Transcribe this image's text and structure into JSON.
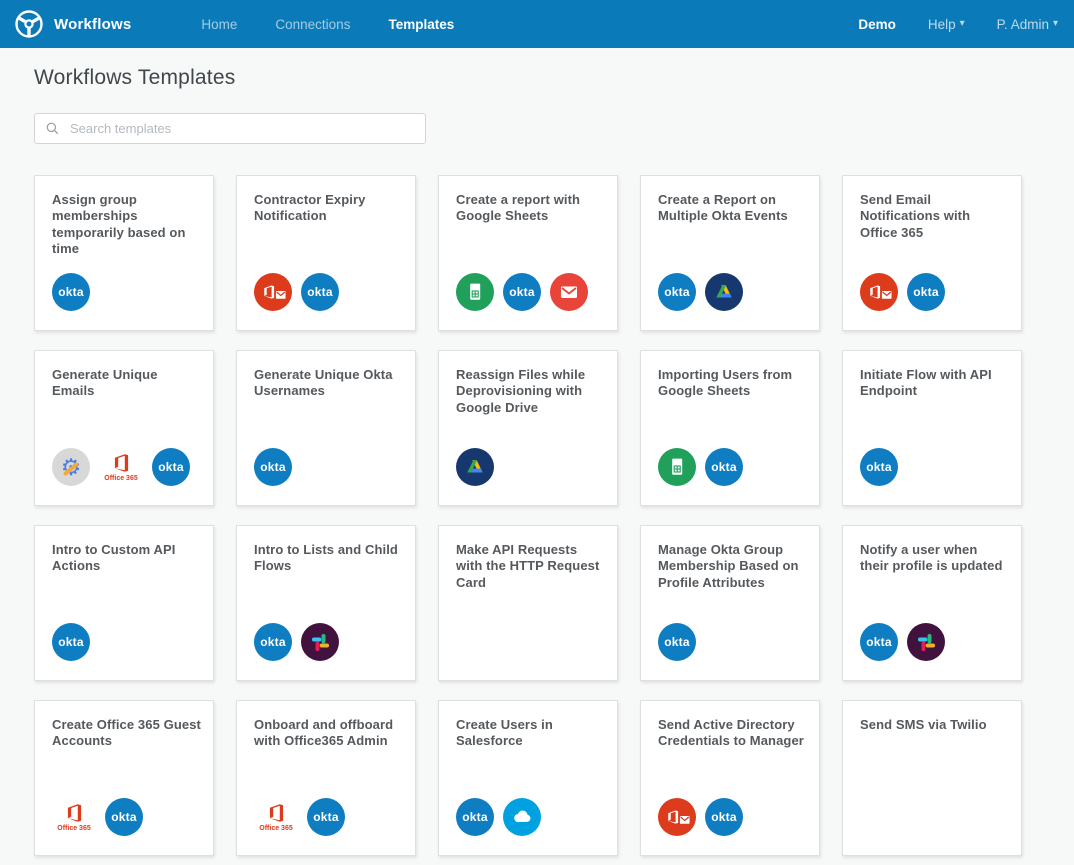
{
  "header": {
    "brand": "Workflows",
    "nav": [
      {
        "label": "Home",
        "active": false
      },
      {
        "label": "Connections",
        "active": false
      },
      {
        "label": "Templates",
        "active": true
      }
    ],
    "right": [
      {
        "label": "Demo",
        "strong": true,
        "caret": false
      },
      {
        "label": "Help",
        "strong": false,
        "caret": true
      },
      {
        "label": "P. Admin",
        "strong": false,
        "caret": true
      }
    ]
  },
  "page": {
    "title": "Workflows Templates",
    "search_placeholder": "Search templates"
  },
  "icon_labels": {
    "okta": "okta",
    "office365": "Office 365"
  },
  "colors": {
    "header_bg": "#0b7ab8",
    "okta_blue": "#0e7dc1",
    "office_red": "#dc3b1c",
    "gmail_red": "#e8443a",
    "sheets_green": "#21a05c",
    "drive_navy": "#16386e",
    "drive_green": "#34a853",
    "drive_yellow": "#fbbc05",
    "drive_blue": "#4285f4",
    "slack_plum": "#42123f",
    "slack_blue": "#36c5f0",
    "slack_green": "#2eb67d",
    "slack_yellow": "#ecb22e",
    "slack_red": "#e01e5a",
    "salesforce_blue": "#00a1e0",
    "gadmin_gray": "#d8d8d8",
    "gadmin_gear_blue": "#4d7fe0",
    "gadmin_wrench_yellow": "#f2a93b"
  },
  "templates": [
    {
      "title": "Assign group memberships temporarily based on time",
      "icons": [
        "okta"
      ]
    },
    {
      "title": "Contractor Expiry Notification",
      "icons": [
        "office365-mail",
        "okta"
      ]
    },
    {
      "title": "Create a report with Google Sheets",
      "icons": [
        "google-sheets",
        "okta",
        "gmail"
      ]
    },
    {
      "title": "Create a Report on Multiple Okta Events",
      "icons": [
        "okta",
        "google-drive"
      ]
    },
    {
      "title": "Send Email Notifications with Office 365",
      "icons": [
        "office365-mail",
        "okta"
      ]
    },
    {
      "title": "Generate Unique Emails",
      "icons": [
        "google-admin",
        "office365",
        "okta"
      ]
    },
    {
      "title": "Generate Unique Okta Usernames",
      "icons": [
        "okta"
      ]
    },
    {
      "title": "Reassign Files while Deprovisioning with Google Drive",
      "icons": [
        "google-drive"
      ]
    },
    {
      "title": "Importing Users from Google Sheets",
      "icons": [
        "google-sheets",
        "okta"
      ]
    },
    {
      "title": "Initiate Flow with API Endpoint",
      "icons": [
        "okta"
      ]
    },
    {
      "title": "Intro to Custom API Actions",
      "icons": [
        "okta"
      ]
    },
    {
      "title": "Intro to Lists and Child Flows",
      "icons": [
        "okta",
        "slack"
      ]
    },
    {
      "title": "Make API Requests with the HTTP Request Card",
      "icons": []
    },
    {
      "title": "Manage Okta Group Membership Based on Profile Attributes",
      "icons": [
        "okta"
      ]
    },
    {
      "title": "Notify a user when their profile is updated",
      "icons": [
        "okta",
        "slack"
      ]
    },
    {
      "title": "Create Office 365 Guest Accounts",
      "icons": [
        "office365",
        "okta"
      ]
    },
    {
      "title": "Onboard and offboard with Office365 Admin",
      "icons": [
        "office365",
        "okta"
      ]
    },
    {
      "title": "Create Users in Salesforce",
      "icons": [
        "okta",
        "salesforce"
      ]
    },
    {
      "title": "Send Active Directory Credentials to Manager",
      "icons": [
        "office365-mail",
        "okta"
      ]
    },
    {
      "title": "Send SMS via Twilio",
      "icons": []
    }
  ]
}
